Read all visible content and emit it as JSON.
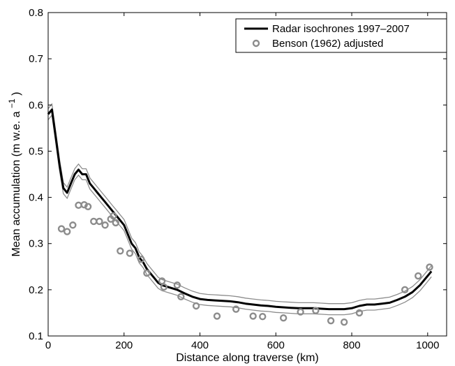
{
  "chart_data": {
    "type": "line",
    "title": "",
    "xlabel": "Distance along traverse (km)",
    "ylabel": "Mean accumulation (m w.e. a",
    "ylabel_superscript": "−1",
    "ylabel_close": ")",
    "xlim": [
      0,
      1050
    ],
    "ylim": [
      0.1,
      0.8
    ],
    "xticks": [
      0,
      200,
      400,
      600,
      800,
      1000
    ],
    "yticks": [
      0.1,
      0.2,
      0.3,
      0.4,
      0.5,
      0.6,
      0.7,
      0.8
    ],
    "xtick_labels": [
      "0",
      "200",
      "400",
      "600",
      "800",
      "1000"
    ],
    "ytick_labels": [
      "0.1",
      "0.2",
      "0.3",
      "0.4",
      "0.5",
      "0.6",
      "0.7",
      "0.8"
    ],
    "grid": false,
    "legend_position": "top-right",
    "colors": {
      "radar": "#000000",
      "band": "#8c8c8c",
      "benson": "#8c8c8c"
    },
    "series": [
      {
        "name": "Radar isochrones 1997–2007",
        "kind": "line",
        "x": [
          0,
          10,
          20,
          30,
          40,
          50,
          60,
          70,
          80,
          90,
          100,
          110,
          120,
          130,
          140,
          150,
          160,
          170,
          180,
          190,
          200,
          210,
          220,
          230,
          240,
          250,
          260,
          270,
          280,
          290,
          300,
          320,
          340,
          360,
          380,
          400,
          420,
          440,
          460,
          480,
          500,
          520,
          540,
          560,
          580,
          600,
          620,
          640,
          660,
          680,
          700,
          720,
          740,
          760,
          780,
          800,
          820,
          840,
          860,
          880,
          900,
          920,
          940,
          960,
          980,
          1000,
          1010
        ],
        "y": [
          0.58,
          0.59,
          0.53,
          0.47,
          0.42,
          0.41,
          0.43,
          0.45,
          0.46,
          0.45,
          0.45,
          0.43,
          0.42,
          0.41,
          0.4,
          0.39,
          0.38,
          0.37,
          0.36,
          0.35,
          0.34,
          0.32,
          0.3,
          0.29,
          0.27,
          0.26,
          0.245,
          0.235,
          0.225,
          0.215,
          0.21,
          0.205,
          0.2,
          0.192,
          0.185,
          0.18,
          0.178,
          0.177,
          0.176,
          0.175,
          0.173,
          0.17,
          0.168,
          0.166,
          0.165,
          0.163,
          0.162,
          0.161,
          0.16,
          0.16,
          0.16,
          0.159,
          0.158,
          0.158,
          0.158,
          0.16,
          0.165,
          0.168,
          0.168,
          0.17,
          0.172,
          0.178,
          0.185,
          0.195,
          0.21,
          0.23,
          0.24
        ]
      },
      {
        "name": "Benson (1962) adjusted",
        "kind": "scatter",
        "x": [
          35,
          50,
          65,
          80,
          95,
          105,
          120,
          135,
          150,
          165,
          172,
          178,
          190,
          215,
          245,
          260,
          300,
          305,
          340,
          350,
          390,
          445,
          495,
          540,
          565,
          620,
          665,
          705,
          745,
          780,
          820,
          940,
          975,
          1005
        ],
        "y": [
          0.332,
          0.326,
          0.34,
          0.383,
          0.384,
          0.38,
          0.348,
          0.348,
          0.34,
          0.353,
          0.36,
          0.345,
          0.284,
          0.279,
          0.266,
          0.236,
          0.219,
          0.206,
          0.21,
          0.185,
          0.165,
          0.143,
          0.158,
          0.143,
          0.142,
          0.139,
          0.152,
          0.155,
          0.133,
          0.13,
          0.15,
          0.2,
          0.23,
          0.249
        ]
      }
    ]
  }
}
